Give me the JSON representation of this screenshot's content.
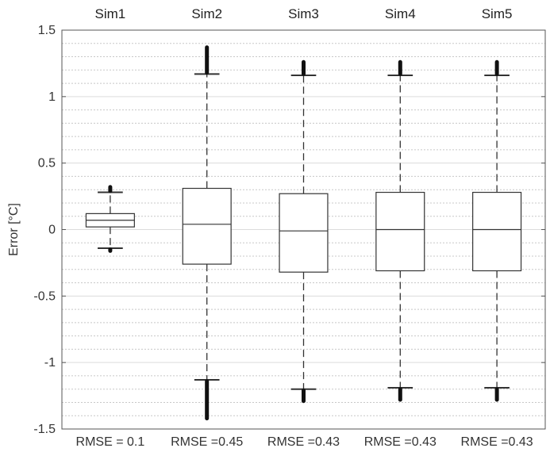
{
  "chart_data": {
    "type": "box",
    "title": "",
    "xlabel": "",
    "ylabel": "Error [°C]",
    "ylim": [
      -1.5,
      1.5
    ],
    "yticks": [
      -1.5,
      -1,
      -0.5,
      0,
      0.5,
      1,
      1.5
    ],
    "ytick_labels": [
      "-1.5",
      "-1",
      "-0.5",
      "0",
      "0.5",
      "1",
      "1.5"
    ],
    "minor_gridlines": true,
    "categories": [
      "Sim1",
      "Sim2",
      "Sim3",
      "Sim4",
      "Sim5"
    ],
    "bottom_labels": [
      "RMSE = 0.1",
      "RMSE =0.45",
      "RMSE =0.43",
      "RMSE =0.43",
      "RMSE =0.43"
    ],
    "series": [
      {
        "category": "Sim1",
        "q1": 0.02,
        "median": 0.07,
        "q3": 0.12,
        "whisker_low": -0.14,
        "whisker_high": 0.28,
        "outliers_low": [
          -0.15,
          -0.16
        ],
        "outliers_high": [
          0.29,
          0.31,
          0.32
        ]
      },
      {
        "category": "Sim2",
        "q1": -0.26,
        "median": 0.04,
        "q3": 0.31,
        "whisker_low": -1.13,
        "whisker_high": 1.17,
        "outliers_low": [
          -1.14,
          -1.42
        ],
        "outliers_high": [
          1.18,
          1.37
        ]
      },
      {
        "category": "Sim3",
        "q1": -0.32,
        "median": -0.01,
        "q3": 0.27,
        "whisker_low": -1.2,
        "whisker_high": 1.16,
        "outliers_low": [
          -1.21,
          -1.29
        ],
        "outliers_high": [
          1.17,
          1.26
        ]
      },
      {
        "category": "Sim4",
        "q1": -0.31,
        "median": 0.0,
        "q3": 0.28,
        "whisker_low": -1.19,
        "whisker_high": 1.16,
        "outliers_low": [
          -1.2,
          -1.28
        ],
        "outliers_high": [
          1.17,
          1.26
        ]
      },
      {
        "category": "Sim5",
        "q1": -0.31,
        "median": 0.0,
        "q3": 0.28,
        "whisker_low": -1.19,
        "whisker_high": 1.16,
        "outliers_low": [
          -1.2,
          -1.28
        ],
        "outliers_high": [
          1.17,
          1.26
        ]
      }
    ],
    "colors": {
      "box": "#333333",
      "whisker": "#333333",
      "outlier": "#111111",
      "grid_major": "#dcdcdc",
      "grid_minor": "#c8c8c8",
      "axis": "#555555"
    }
  }
}
